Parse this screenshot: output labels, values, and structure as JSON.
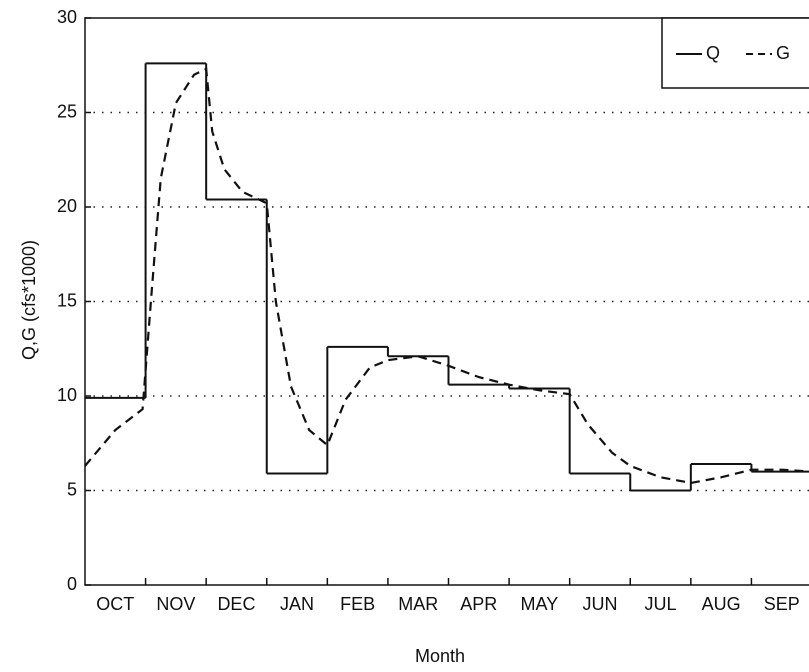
{
  "chart_data": {
    "type": "line",
    "ylabel": "Q,G (cfs*1000)",
    "xlabel": "Month",
    "categories": [
      "OCT",
      "NOV",
      "DEC",
      "JAN",
      "FEB",
      "MAR",
      "APR",
      "MAY",
      "JUN",
      "JUL",
      "AUG",
      "SEP"
    ],
    "xlim": [
      0,
      12
    ],
    "ylim": [
      0,
      30
    ],
    "yticks": [
      0,
      5,
      10,
      15,
      20,
      25,
      30
    ],
    "grid": true,
    "legend": "upper right",
    "series": [
      {
        "name": "Q",
        "color": "#111111",
        "style": "step",
        "values": [
          9.9,
          27.6,
          20.4,
          5.9,
          12.6,
          12.1,
          10.6,
          10.4,
          5.9,
          5.0,
          6.4,
          6.0
        ]
      },
      {
        "name": "G",
        "color": "#111111",
        "style": "dashed",
        "x": [
          0,
          0.5,
          0.95,
          1.1,
          1.25,
          1.5,
          1.8,
          2.0,
          2.1,
          2.3,
          2.6,
          3.0,
          3.15,
          3.4,
          3.7,
          4.0,
          4.3,
          4.7,
          5.0,
          5.5,
          6.0,
          6.5,
          7.0,
          7.5,
          8.0,
          8.3,
          8.7,
          9.0,
          9.5,
          10.0,
          10.5,
          11.0,
          11.5,
          12.0
        ],
        "values": [
          6.3,
          8.2,
          9.3,
          15.5,
          21.5,
          25.5,
          27.0,
          27.3,
          24.0,
          22.0,
          20.8,
          20.2,
          15.0,
          10.5,
          8.2,
          7.4,
          9.8,
          11.5,
          11.9,
          12.1,
          11.6,
          11.0,
          10.6,
          10.3,
          10.1,
          8.5,
          7.0,
          6.3,
          5.7,
          5.4,
          5.7,
          6.1,
          6.1,
          6.0
        ]
      }
    ]
  }
}
